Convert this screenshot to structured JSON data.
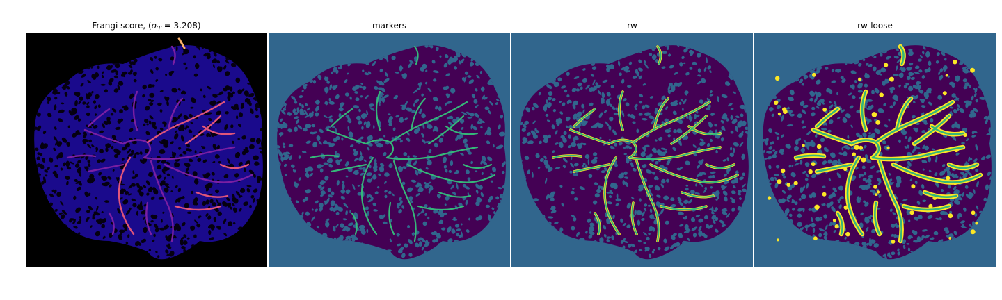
{
  "figure": {
    "panels": [
      {
        "title_prefix": "Frangi score, (",
        "title_sigma": "σ",
        "title_sub": "T",
        "title_suffix": " = 3.208)",
        "colormap": "magma",
        "background_color": "#000000",
        "vessel_colors": [
          "#1a0a8c",
          "#7a1fa2",
          "#e0557a",
          "#fcb36b"
        ]
      },
      {
        "title": "markers",
        "background_color": "#31668d",
        "tissue_color": "#440154",
        "marker_color": "#35b779"
      },
      {
        "title": "rw",
        "background_color": "#31668d",
        "tissue_color": "#440154",
        "marker_color": "#35b779",
        "extra_color": "#fde725"
      },
      {
        "title": "rw-loose",
        "background_color": "#31668d",
        "tissue_color": "#440154",
        "marker_color": "#35b779",
        "extra_color": "#fde725"
      }
    ]
  }
}
